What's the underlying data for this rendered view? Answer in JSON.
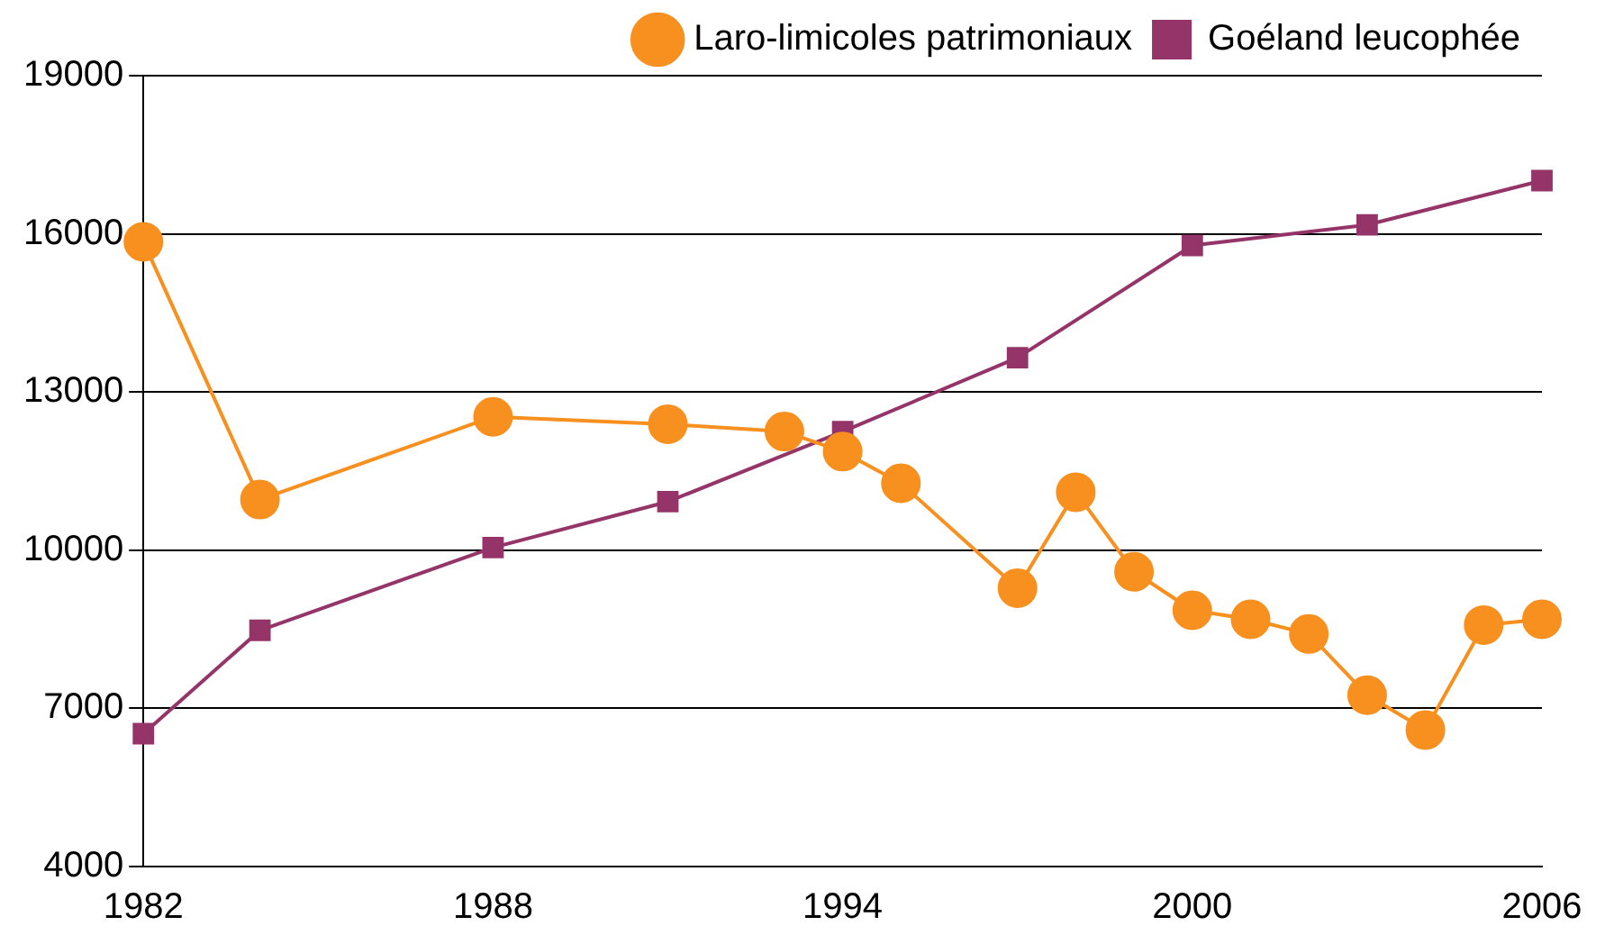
{
  "chart_data": {
    "type": "line",
    "xlim": [
      1982,
      2006
    ],
    "xticks": [
      1982,
      1988,
      1994,
      2000,
      2006
    ],
    "ylim": [
      4000,
      19000
    ],
    "yticks": [
      4000,
      7000,
      10000,
      13000,
      16000,
      19000
    ],
    "grid": "y",
    "legend": "top",
    "series": [
      {
        "name": "Laro-limicoles patrimoniaux",
        "color": "#f7901e",
        "marker": "circle",
        "x": [
          1982,
          1984,
          1988,
          1991,
          1993,
          1994,
          1995,
          1997,
          1998,
          1999,
          2000,
          2001,
          2002,
          2003,
          2004,
          2005,
          2006
        ],
        "values": [
          15850,
          10960,
          12530,
          12390,
          12250,
          11870,
          11270,
          9280,
          11100,
          9590,
          8860,
          8690,
          8410,
          7250,
          6590,
          8580,
          8690
        ]
      },
      {
        "name": "Goéland leucophée",
        "color": "#953468",
        "marker": "square",
        "x": [
          1982,
          1984,
          1988,
          1991,
          1994,
          1997,
          2000,
          2003,
          2006
        ],
        "values": [
          6520,
          8480,
          10050,
          10920,
          12250,
          13650,
          15780,
          16170,
          17010
        ]
      }
    ]
  }
}
